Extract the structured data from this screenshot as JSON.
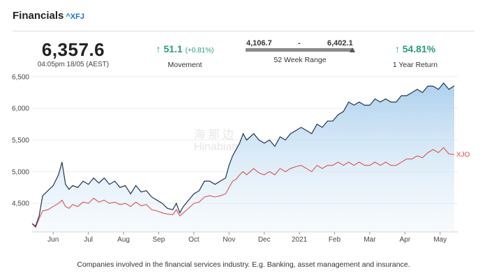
{
  "header": {
    "title": "Financials",
    "ticker": "^XFJ"
  },
  "price": {
    "value": "6,357.6",
    "time": "04:05pm 18/05 (AEST)"
  },
  "movement": {
    "arrow": "↑",
    "value": "51.1",
    "pct": "(+0.81%)",
    "label": "Movement"
  },
  "week52": {
    "low": "4,106.7",
    "separator": "-",
    "high": "6,402.1",
    "label": "52 Week Range",
    "current_fraction": 0.98
  },
  "one_year": {
    "arrow": "↑",
    "value": "54.81%",
    "label": "1 Year Return"
  },
  "footer": {
    "text": "Companies involved in the financial services industry. E.g. Banking, asset management and insurance."
  },
  "watermark": {
    "line1": "海 那 边",
    "line2": "Hinabian"
  },
  "colors": {
    "xfj_line": "#1f3552",
    "xfj_fill": "#9fc9ea",
    "xjo_line": "#d9534f",
    "positive": "#2a9d74"
  },
  "chart_data": {
    "type": "area",
    "x_tick_labels": [
      "Jun",
      "Jul",
      "Aug",
      "Sep",
      "Oct",
      "Nov",
      "Dec",
      "2021",
      "Feb",
      "Mar",
      "Apr",
      "May"
    ],
    "x_tick_positions": [
      0.6,
      1.6,
      2.6,
      3.6,
      4.6,
      5.6,
      6.6,
      7.6,
      8.6,
      9.6,
      10.6,
      11.6
    ],
    "y_ticks": [
      4500,
      5000,
      5500,
      6000,
      6500
    ],
    "y_tick_labels": [
      "4,500",
      "5,000",
      "5,500",
      "6,000",
      "6,500"
    ],
    "xlim": [
      0,
      12.1
    ],
    "ylim": [
      4050,
      6520
    ],
    "series": [
      {
        "name": "XFJ",
        "x": [
          0,
          0.1,
          0.2,
          0.3,
          0.45,
          0.6,
          0.75,
          0.85,
          0.95,
          1.05,
          1.15,
          1.3,
          1.45,
          1.6,
          1.75,
          1.9,
          2.05,
          2.2,
          2.35,
          2.5,
          2.65,
          2.8,
          2.95,
          3.1,
          3.25,
          3.4,
          3.55,
          3.7,
          3.85,
          4.0,
          4.1,
          4.2,
          4.3,
          4.45,
          4.6,
          4.75,
          4.9,
          5.05,
          5.2,
          5.35,
          5.5,
          5.6,
          5.7,
          5.8,
          5.9,
          6.0,
          6.1,
          6.2,
          6.3,
          6.45,
          6.6,
          6.75,
          6.9,
          7.05,
          7.2,
          7.35,
          7.5,
          7.65,
          7.8,
          7.95,
          8.1,
          8.25,
          8.4,
          8.55,
          8.7,
          8.85,
          9.0,
          9.15,
          9.3,
          9.45,
          9.6,
          9.75,
          9.9,
          10.05,
          10.2,
          10.35,
          10.5,
          10.65,
          10.8,
          10.95,
          11.1,
          11.25,
          11.4,
          11.55,
          11.7,
          11.85,
          12.0
        ],
        "values": [
          4180,
          4140,
          4300,
          4620,
          4700,
          4780,
          4950,
          5150,
          4800,
          4720,
          4780,
          4750,
          4850,
          4800,
          4900,
          4820,
          4900,
          4800,
          4850,
          4750,
          4780,
          4650,
          4780,
          4680,
          4700,
          4600,
          4550,
          4500,
          4420,
          4400,
          4500,
          4350,
          4450,
          4550,
          4650,
          4700,
          4850,
          4850,
          4800,
          4850,
          4900,
          5100,
          5250,
          5350,
          5450,
          5600,
          5500,
          5550,
          5600,
          5500,
          5450,
          5500,
          5400,
          5550,
          5500,
          5600,
          5650,
          5700,
          5650,
          5600,
          5750,
          5700,
          5800,
          5800,
          5900,
          5950,
          6100,
          6050,
          6100,
          6050,
          6050,
          6150,
          6100,
          6150,
          6100,
          6100,
          6200,
          6200,
          6250,
          6300,
          6250,
          6350,
          6350,
          6300,
          6400,
          6300,
          6357.6
        ]
      },
      {
        "name": "XJO",
        "x": [
          0,
          0.1,
          0.2,
          0.3,
          0.45,
          0.6,
          0.75,
          0.85,
          0.95,
          1.05,
          1.15,
          1.3,
          1.45,
          1.6,
          1.75,
          1.9,
          2.05,
          2.2,
          2.35,
          2.5,
          2.65,
          2.8,
          2.95,
          3.1,
          3.25,
          3.4,
          3.55,
          3.7,
          3.85,
          4.0,
          4.1,
          4.2,
          4.3,
          4.45,
          4.6,
          4.75,
          4.9,
          5.05,
          5.2,
          5.35,
          5.5,
          5.6,
          5.7,
          5.8,
          5.9,
          6.0,
          6.1,
          6.2,
          6.3,
          6.45,
          6.6,
          6.75,
          6.9,
          7.05,
          7.2,
          7.35,
          7.5,
          7.65,
          7.8,
          7.95,
          8.1,
          8.25,
          8.4,
          8.55,
          8.7,
          8.85,
          9.0,
          9.15,
          9.3,
          9.45,
          9.6,
          9.75,
          9.9,
          10.05,
          10.2,
          10.35,
          10.5,
          10.65,
          10.8,
          10.95,
          11.1,
          11.25,
          11.4,
          11.55,
          11.7,
          11.85,
          12.0
        ],
        "values": [
          4180,
          4120,
          4260,
          4380,
          4400,
          4450,
          4500,
          4550,
          4450,
          4420,
          4480,
          4450,
          4520,
          4500,
          4580,
          4520,
          4550,
          4500,
          4520,
          4480,
          4500,
          4450,
          4520,
          4460,
          4480,
          4400,
          4380,
          4350,
          4330,
          4320,
          4400,
          4300,
          4350,
          4420,
          4500,
          4520,
          4600,
          4620,
          4600,
          4620,
          4650,
          4750,
          4850,
          4880,
          4950,
          5000,
          4950,
          5000,
          5050,
          4980,
          4950,
          5000,
          4950,
          5050,
          5000,
          5050,
          5080,
          5100,
          5050,
          5000,
          5100,
          5050,
          5100,
          5100,
          5150,
          5100,
          5150,
          5100,
          5150,
          5100,
          5100,
          5150,
          5100,
          5150,
          5100,
          5100,
          5150,
          5200,
          5200,
          5250,
          5220,
          5300,
          5350,
          5300,
          5380,
          5280,
          5270
        ]
      }
    ],
    "end_label": "XJO"
  }
}
